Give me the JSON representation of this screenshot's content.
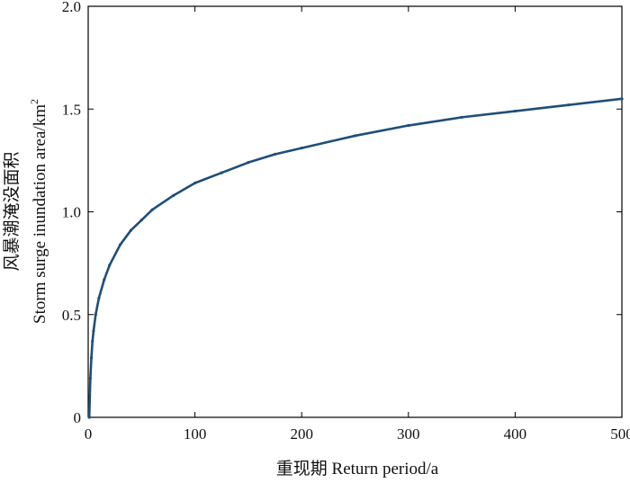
{
  "chart_data": {
    "type": "line",
    "title": "",
    "xlabel": "重现期 Return period/a",
    "ylabel_line1": "风暴潮淹没面积",
    "ylabel_line2_prefix": "Storm surge inundation area/km",
    "ylabel_line2_sup": "2",
    "xlim": [
      0,
      500
    ],
    "ylim": [
      0,
      2.0
    ],
    "x_ticks": [
      0,
      100,
      200,
      300,
      400,
      500
    ],
    "x_tick_labels": [
      "0",
      "100",
      "200",
      "300",
      "400",
      "500"
    ],
    "y_ticks": [
      0,
      0.5,
      1.0,
      1.5,
      2.0
    ],
    "y_tick_labels": [
      "0",
      "0.5",
      "1.0",
      "1.5",
      "2.0"
    ],
    "grid": false,
    "legend": "none",
    "series": [
      {
        "color": "#1f4e79",
        "x": [
          1,
          2,
          3,
          4,
          5,
          7,
          10,
          15,
          20,
          30,
          40,
          50,
          60,
          80,
          100,
          125,
          150,
          175,
          200,
          250,
          300,
          350,
          400,
          450,
          500
        ],
        "y": [
          0.0,
          0.19,
          0.29,
          0.37,
          0.42,
          0.5,
          0.58,
          0.67,
          0.74,
          0.84,
          0.91,
          0.96,
          1.01,
          1.08,
          1.14,
          1.19,
          1.24,
          1.28,
          1.31,
          1.37,
          1.42,
          1.46,
          1.49,
          1.52,
          1.55
        ]
      }
    ]
  }
}
